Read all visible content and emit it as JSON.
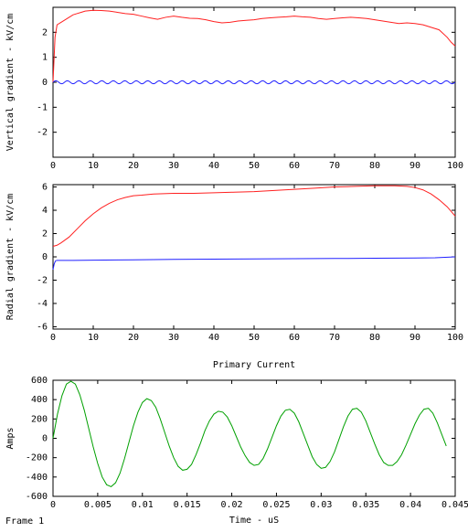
{
  "frame_label": "Frame 1",
  "colors": {
    "vertical_series": "#ff2020",
    "radial_series": "#ff2020",
    "zero_series": "#2020ff",
    "current_series": "#00a000",
    "axis": "#000000"
  },
  "chart_data": [
    {
      "type": "line",
      "title": "",
      "xlabel": "",
      "ylabel": "Vertical gradient - kV/cm",
      "xlim": [
        0,
        100
      ],
      "ylim": [
        -3,
        3
      ],
      "xticks": [
        "0",
        "10",
        "20",
        "30",
        "40",
        "50",
        "60",
        "70",
        "80",
        "90",
        "100"
      ],
      "yticks": [
        "-2",
        "-1",
        "0",
        "1",
        "2"
      ],
      "grid": false,
      "series": [
        {
          "color_key": "vertical_series",
          "x": [
            0,
            0.5,
            1,
            2,
            3,
            4,
            5,
            6,
            7,
            8,
            10,
            12,
            14,
            16,
            18,
            20,
            22,
            24,
            26,
            28,
            30,
            32,
            34,
            36,
            38,
            40,
            42,
            44,
            46,
            48,
            50,
            52,
            54,
            56,
            58,
            60,
            62,
            64,
            66,
            68,
            70,
            72,
            74,
            76,
            78,
            80,
            82,
            84,
            86,
            88,
            90,
            92,
            94,
            96,
            98,
            99,
            100
          ],
          "y": [
            0,
            1.8,
            2.3,
            2.4,
            2.5,
            2.6,
            2.7,
            2.75,
            2.8,
            2.85,
            2.88,
            2.87,
            2.85,
            2.8,
            2.75,
            2.72,
            2.65,
            2.58,
            2.52,
            2.6,
            2.65,
            2.6,
            2.56,
            2.55,
            2.5,
            2.43,
            2.38,
            2.4,
            2.45,
            2.48,
            2.5,
            2.55,
            2.58,
            2.6,
            2.62,
            2.65,
            2.62,
            2.6,
            2.55,
            2.52,
            2.55,
            2.58,
            2.6,
            2.58,
            2.55,
            2.5,
            2.45,
            2.4,
            2.35,
            2.38,
            2.35,
            2.3,
            2.2,
            2.1,
            1.8,
            1.6,
            1.45
          ]
        },
        {
          "color_key": "zero_series",
          "x": [],
          "y": [],
          "formula": "0.06*sin(x*2.2)"
        }
      ]
    },
    {
      "type": "line",
      "title": "",
      "xlabel": "",
      "ylabel": "Radial gradient - kV/cm",
      "xlim": [
        0,
        100
      ],
      "ylim": [
        -6.2,
        6.2
      ],
      "xticks": [
        "0",
        "10",
        "20",
        "30",
        "40",
        "50",
        "60",
        "70",
        "80",
        "90",
        "100"
      ],
      "yticks": [
        "-6",
        "-4",
        "-2",
        "0",
        "2",
        "4",
        "6"
      ],
      "grid": false,
      "series": [
        {
          "color_key": "radial_series",
          "x": [
            0,
            1,
            2,
            4,
            6,
            8,
            10,
            12,
            14,
            16,
            18,
            20,
            22,
            25,
            30,
            35,
            40,
            45,
            50,
            55,
            60,
            65,
            70,
            75,
            80,
            85,
            88,
            90,
            92,
            94,
            96,
            98,
            100
          ],
          "y": [
            0.9,
            1.0,
            1.2,
            1.7,
            2.4,
            3.1,
            3.7,
            4.2,
            4.6,
            4.9,
            5.1,
            5.25,
            5.3,
            5.4,
            5.45,
            5.45,
            5.5,
            5.55,
            5.6,
            5.7,
            5.8,
            5.9,
            6.0,
            6.05,
            6.1,
            6.1,
            6.05,
            5.95,
            5.75,
            5.4,
            4.9,
            4.3,
            3.5
          ]
        },
        {
          "color_key": "zero_series",
          "x": [
            0,
            0.3,
            0.6,
            1,
            2,
            5,
            10,
            20,
            30,
            40,
            50,
            60,
            70,
            80,
            90,
            95,
            100
          ],
          "y": [
            -1.1,
            -0.6,
            -0.35,
            -0.3,
            -0.3,
            -0.3,
            -0.28,
            -0.25,
            -0.22,
            -0.2,
            -0.18,
            -0.16,
            -0.14,
            -0.12,
            -0.1,
            -0.08,
            0
          ]
        }
      ]
    },
    {
      "type": "line",
      "title": "Primary Current",
      "xlabel": "Time - uS",
      "ylabel": "Amps",
      "xlim": [
        0,
        0.045
      ],
      "ylim": [
        -600,
        600
      ],
      "xticks": [
        "0",
        "0.005",
        "0.01",
        "0.015",
        "0.02",
        "0.025",
        "0.03",
        "0.035",
        "0.04",
        "0.045"
      ],
      "yticks": [
        "-600",
        "-400",
        "-200",
        "0",
        "200",
        "400",
        "600"
      ],
      "grid": false,
      "series": [
        {
          "color_key": "current_series",
          "x": [
            0,
            0.0005,
            0.001,
            0.0015,
            0.002,
            0.0025,
            0.003,
            0.0035,
            0.004,
            0.0045,
            0.005,
            0.0055,
            0.006,
            0.0065,
            0.007,
            0.0075,
            0.008,
            0.0085,
            0.009,
            0.0095,
            0.01,
            0.0105,
            0.011,
            0.0115,
            0.012,
            0.0125,
            0.013,
            0.0135,
            0.014,
            0.0145,
            0.015,
            0.0155,
            0.016,
            0.0165,
            0.017,
            0.0175,
            0.018,
            0.0185,
            0.019,
            0.0195,
            0.02,
            0.0205,
            0.021,
            0.0215,
            0.022,
            0.0225,
            0.023,
            0.0235,
            0.024,
            0.0245,
            0.025,
            0.0255,
            0.026,
            0.0265,
            0.027,
            0.0275,
            0.028,
            0.0285,
            0.029,
            0.0295,
            0.03,
            0.0305,
            0.031,
            0.0315,
            0.032,
            0.0325,
            0.033,
            0.0335,
            0.034,
            0.0345,
            0.035,
            0.0355,
            0.036,
            0.0365,
            0.037,
            0.0375,
            0.038,
            0.0385,
            0.039,
            0.0395,
            0.04,
            0.0405,
            0.041,
            0.0415,
            0.042,
            0.0425,
            0.043,
            0.0435,
            0.044
          ],
          "y": [
            0,
            250,
            440,
            560,
            590,
            560,
            450,
            290,
            100,
            -90,
            -260,
            -400,
            -480,
            -500,
            -460,
            -360,
            -210,
            -40,
            130,
            270,
            370,
            410,
            390,
            320,
            200,
            60,
            -80,
            -200,
            -290,
            -330,
            -320,
            -270,
            -170,
            -50,
            80,
            180,
            250,
            280,
            270,
            220,
            130,
            20,
            -90,
            -180,
            -250,
            -280,
            -270,
            -210,
            -110,
            10,
            130,
            230,
            290,
            300,
            260,
            170,
            50,
            -70,
            -190,
            -270,
            -310,
            -300,
            -240,
            -140,
            -10,
            120,
            230,
            300,
            310,
            270,
            180,
            60,
            -60,
            -170,
            -250,
            -280,
            -280,
            -240,
            -170,
            -70,
            40,
            150,
            240,
            300,
            310,
            260,
            160,
            40,
            -80
          ]
        }
      ]
    }
  ]
}
